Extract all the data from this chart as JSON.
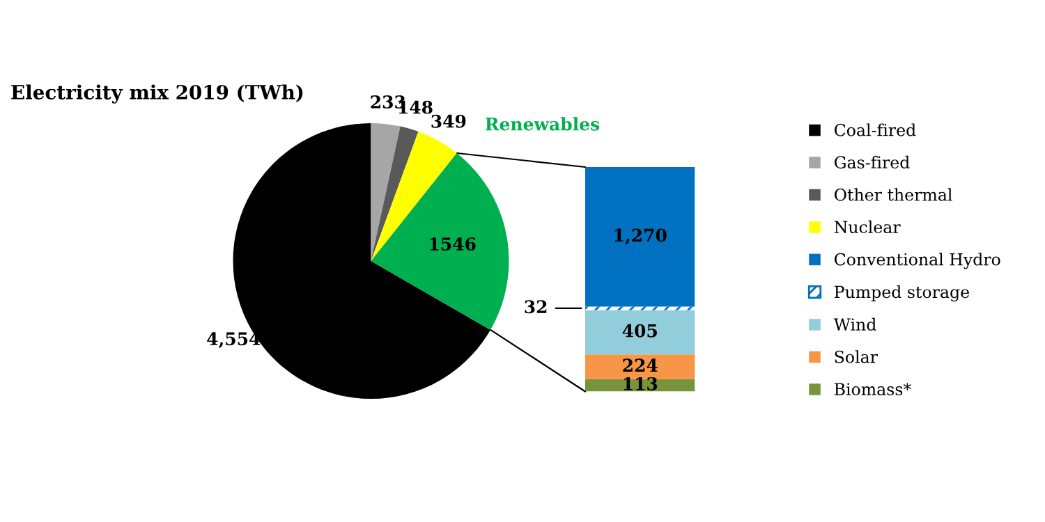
{
  "chart_data": [
    {
      "type": "pie",
      "title": "Electricity mix 2019 (TWh)",
      "categories": [
        "Coal-fired",
        "Gas-fired",
        "Other thermal",
        "Nuclear",
        null
      ],
      "values": [
        4554,
        233,
        148,
        349,
        1546
      ],
      "colors": [
        "#000000",
        "#a6a6a6",
        "#595959",
        "#ffff00",
        "#00b050"
      ],
      "value_labels": [
        "4,554",
        "233",
        "148",
        "349",
        "1546"
      ],
      "annotations": [
        "Renewables"
      ],
      "legend": "right"
    },
    {
      "type": "bar",
      "stacked": true,
      "categories": [
        null
      ],
      "series": [
        {
          "name": "Biomass*",
          "color": "#77933c",
          "values": [
            113
          ],
          "value_labels": [
            "113"
          ]
        },
        {
          "name": "Solar",
          "color": "#f79646",
          "values": [
            224
          ],
          "value_labels": [
            "224"
          ]
        },
        {
          "name": "Wind",
          "color": "#92cddc",
          "values": [
            405
          ],
          "value_labels": [
            "405"
          ]
        },
        {
          "name": "Pumped storage",
          "color": "#0070c0",
          "values": [
            32
          ],
          "value_labels": [
            "32"
          ],
          "line_style": "dashed"
        },
        {
          "name": "Conventional Hydro",
          "color": "#0070c0",
          "values": [
            1270
          ],
          "value_labels": [
            "1,270"
          ]
        }
      ],
      "legend": "right"
    }
  ]
}
